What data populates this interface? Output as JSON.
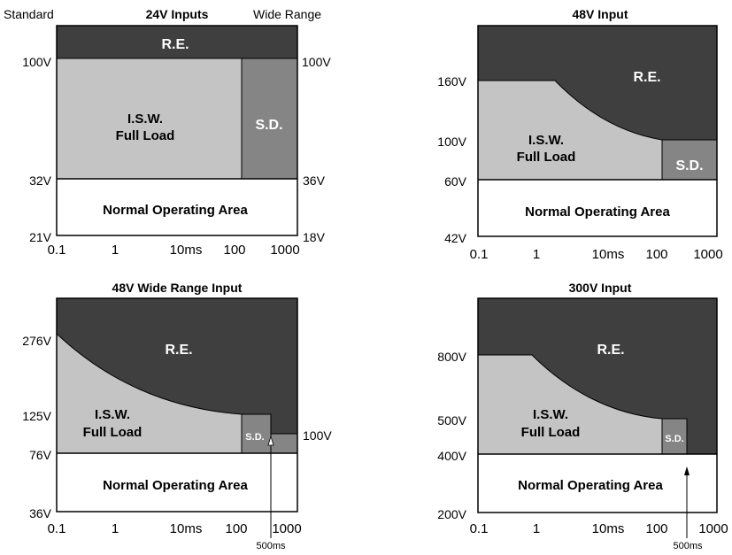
{
  "colors": {
    "regenerative_energy": "#3f3f3f",
    "input_surge_withstand": "#c4c4c4",
    "shutdown": "#858585",
    "normal": "#ffffff"
  },
  "panel1": {
    "title": "24V Inputs",
    "left_header": "Standard",
    "right_header": "Wide Range",
    "re_label": "R.E.",
    "isw_line1": "I.S.W.",
    "isw_line2": "Full Load",
    "sd_label": "S.D.",
    "normal_label": "Normal Operating Area",
    "left_ticks": [
      "100V",
      "32V",
      "21V"
    ],
    "right_ticks": [
      "100V",
      "36V",
      "18V"
    ],
    "x_ticks": [
      "0.1",
      "1",
      "10ms",
      "100",
      "1000"
    ]
  },
  "panel2": {
    "title": "48V Input",
    "re_label": "R.E.",
    "isw_line1": "I.S.W.",
    "isw_line2": "Full Load",
    "sd_label": "S.D.",
    "normal_label": "Normal Operating Area",
    "left_ticks": [
      "160V",
      "100V",
      "60V",
      "42V"
    ],
    "x_ticks": [
      "0.1",
      "1",
      "10ms",
      "100",
      "1000"
    ]
  },
  "panel3": {
    "title": "48V Wide Range Input",
    "re_label": "R.E.",
    "isw_line1": "I.S.W.",
    "isw_line2": "Full Load",
    "sd_label": "S.D.",
    "normal_label": "Normal Operating Area",
    "left_ticks": [
      "276V",
      "125V",
      "76V",
      "36V"
    ],
    "right_tick": "100V",
    "x_ticks": [
      "0.1",
      "1",
      "10ms",
      "100",
      "1000"
    ],
    "marker_label": "500ms"
  },
  "panel4": {
    "title": "300V Input",
    "re_label": "R.E.",
    "isw_line1": "I.S.W.",
    "isw_line2": "Full Load",
    "sd_label": "S.D.",
    "normal_label": "Normal Operating Area",
    "left_ticks": [
      "800V",
      "500V",
      "400V",
      "200V"
    ],
    "x_ticks": [
      "0.1",
      "1",
      "10ms",
      "100",
      "1000"
    ],
    "marker_label": "500ms"
  }
}
